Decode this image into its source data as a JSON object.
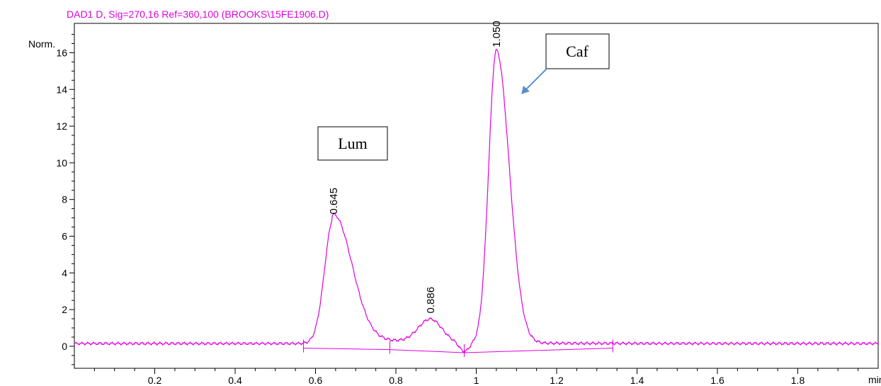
{
  "signal_title": "DAD1 D, Sig=270,16 Ref=360,100 (BROOKS\\15FE1906.D)",
  "colors": {
    "trace": "#e000e0",
    "arrow": "#5b8fc9",
    "axis": "#000000"
  },
  "chart_data": {
    "type": "line",
    "title": "",
    "ylabel": "Norm.",
    "xlabel": "min",
    "xlim": [
      0,
      2.0
    ],
    "ylim": [
      -1.2,
      17.6
    ],
    "x_ticks": [
      {
        "v": 0.2,
        "label": "0.2"
      },
      {
        "v": 0.4,
        "label": "0.4"
      },
      {
        "v": 0.6,
        "label": "0.6"
      },
      {
        "v": 0.8,
        "label": "0.8"
      },
      {
        "v": 1.0,
        "label": "1"
      },
      {
        "v": 1.2,
        "label": "1.2"
      },
      {
        "v": 1.4,
        "label": "1.4"
      },
      {
        "v": 1.6,
        "label": "1.6"
      },
      {
        "v": 1.8,
        "label": "1.8"
      }
    ],
    "y_ticks": [
      {
        "v": 0,
        "label": "0"
      },
      {
        "v": 2,
        "label": "2"
      },
      {
        "v": 4,
        "label": "4"
      },
      {
        "v": 6,
        "label": "6"
      },
      {
        "v": 8,
        "label": "8"
      },
      {
        "v": 10,
        "label": "10"
      },
      {
        "v": 12,
        "label": "12"
      },
      {
        "v": 14,
        "label": "14"
      },
      {
        "v": 16,
        "label": "16"
      }
    ],
    "baseline_level": 0.15,
    "peaks": [
      {
        "rt": 0.645,
        "label": "0.645",
        "height": 7.0
      },
      {
        "rt": 0.886,
        "label": "0.886",
        "height": 1.6
      },
      {
        "rt": 1.05,
        "label": "1.050",
        "height": 16.1
      }
    ],
    "integration_baseline": [
      {
        "x": 0.57,
        "y": -0.1
      },
      {
        "x": 0.785,
        "y": -0.18
      },
      {
        "x": 0.97,
        "y": -0.35
      },
      {
        "x": 1.34,
        "y": -0.1
      }
    ],
    "annotations": [
      {
        "text": "Lum",
        "peak_rt": 0.645
      },
      {
        "text": "Caf",
        "peak_rt": 1.05
      }
    ]
  }
}
